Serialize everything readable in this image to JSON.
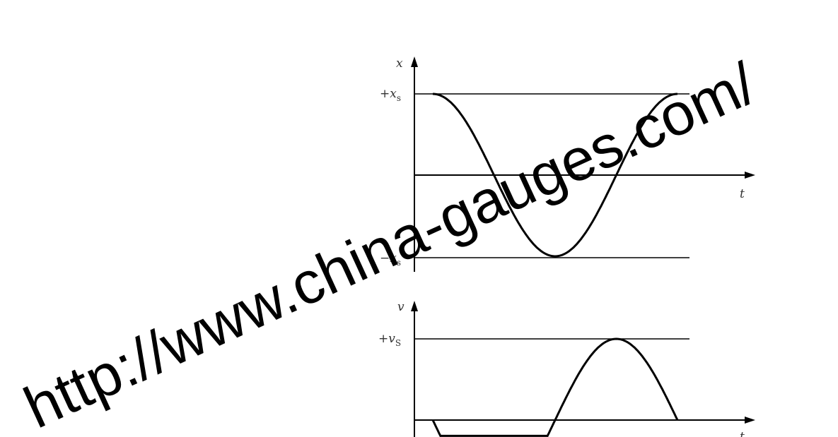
{
  "upper_graph": {
    "y_axis_label": "x",
    "x_axis_label": "t",
    "upper_ref_label": "+x",
    "upper_ref_sub": "s",
    "lower_ref_label": "−x",
    "lower_ref_sub": "s",
    "curve": "cosine"
  },
  "lower_graph": {
    "y_axis_label": "v",
    "x_axis_label": "t",
    "upper_ref_label": "+v",
    "upper_ref_sub": "S",
    "curve": "negative sine"
  },
  "watermark": {
    "text": "http://www.china-gauges.com/"
  },
  "colors": {
    "ink": "#000000",
    "label": "#333333",
    "background": "#ffffff"
  }
}
